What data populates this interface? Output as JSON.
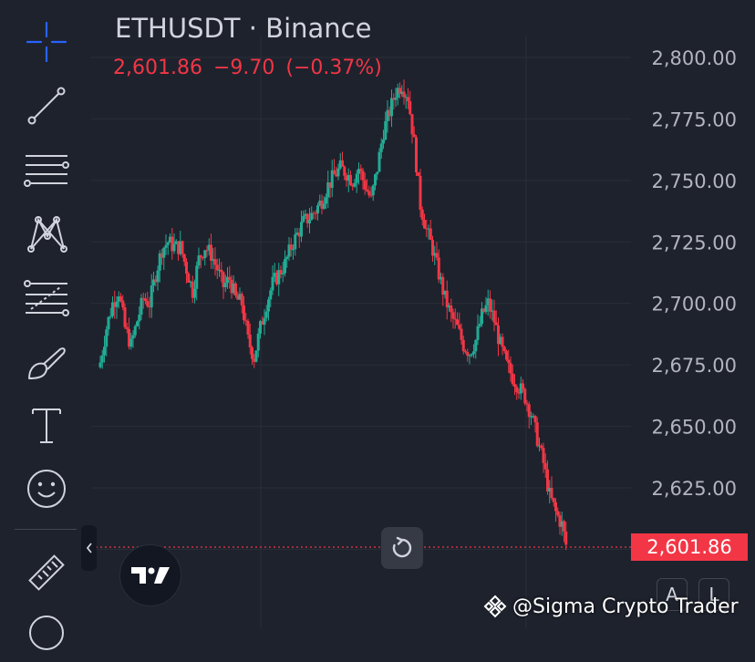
{
  "chart": {
    "symbol_title": "ETHUSDT · Binance",
    "last_price": "2,601.86",
    "change": "−9.70",
    "change_percent": "(−0.37%)",
    "last_price_tag": "2,601.86",
    "up_color": "#22ab94",
    "down_color": "#f23645"
  },
  "toolbar": {
    "tools": [
      "crosshair",
      "trend-line",
      "horizontal-lines",
      "pattern",
      "fib-retracement",
      "brush",
      "text",
      "emoji",
      "ruler",
      "zoom"
    ]
  },
  "corner_buttons": {
    "auto_label": "A",
    "log_label": "L"
  },
  "watermark": {
    "text": "@Sigma Crypto Trader"
  },
  "chart_data": {
    "type": "candlestick",
    "title": "ETHUSDT · Binance",
    "y_ticks": [
      "2,800.00",
      "2,775.00",
      "2,750.00",
      "2,725.00",
      "2,700.00",
      "2,675.00",
      "2,650.00",
      "2,625.00"
    ],
    "ylim": [
      2585,
      2805
    ],
    "grid": true,
    "last": 2601.86,
    "close_path": [
      [
        0,
        2676
      ],
      [
        3,
        2690
      ],
      [
        6,
        2700
      ],
      [
        9,
        2705
      ],
      [
        12,
        2690
      ],
      [
        15,
        2683
      ],
      [
        18,
        2693
      ],
      [
        21,
        2702
      ],
      [
        24,
        2700
      ],
      [
        27,
        2712
      ],
      [
        30,
        2722
      ],
      [
        33,
        2725
      ],
      [
        36,
        2723
      ],
      [
        39,
        2723
      ],
      [
        42,
        2714
      ],
      [
        45,
        2705
      ],
      [
        48,
        2718
      ],
      [
        51,
        2723
      ],
      [
        54,
        2720
      ],
      [
        57,
        2714
      ],
      [
        60,
        2707
      ],
      [
        63,
        2710
      ],
      [
        66,
        2702
      ],
      [
        69,
        2700
      ],
      [
        72,
        2685
      ],
      [
        75,
        2678
      ],
      [
        78,
        2690
      ],
      [
        81,
        2700
      ],
      [
        84,
        2708
      ],
      [
        87,
        2712
      ],
      [
        90,
        2716
      ],
      [
        93,
        2723
      ],
      [
        96,
        2728
      ],
      [
        99,
        2733
      ],
      [
        102,
        2735
      ],
      [
        105,
        2738
      ],
      [
        108,
        2742
      ],
      [
        111,
        2748
      ],
      [
        114,
        2752
      ],
      [
        117,
        2755
      ],
      [
        120,
        2753
      ],
      [
        123,
        2750
      ],
      [
        126,
        2755
      ],
      [
        129,
        2748
      ],
      [
        132,
        2742
      ],
      [
        135,
        2755
      ],
      [
        138,
        2770
      ],
      [
        141,
        2778
      ],
      [
        144,
        2786
      ],
      [
        147,
        2789
      ],
      [
        150,
        2784
      ],
      [
        153,
        2765
      ],
      [
        156,
        2740
      ],
      [
        159,
        2730
      ],
      [
        162,
        2722
      ],
      [
        165,
        2712
      ],
      [
        168,
        2702
      ],
      [
        171,
        2695
      ],
      [
        174,
        2690
      ],
      [
        177,
        2683
      ],
      [
        180,
        2680
      ],
      [
        183,
        2685
      ],
      [
        186,
        2695
      ],
      [
        189,
        2700
      ],
      [
        192,
        2693
      ],
      [
        195,
        2683
      ],
      [
        198,
        2675
      ],
      [
        201,
        2670
      ],
      [
        204,
        2666
      ],
      [
        207,
        2662
      ],
      [
        210,
        2655
      ],
      [
        213,
        2645
      ],
      [
        216,
        2635
      ],
      [
        219,
        2622
      ],
      [
        222,
        2615
      ],
      [
        225,
        2610
      ],
      [
        227,
        2601.86
      ]
    ]
  }
}
